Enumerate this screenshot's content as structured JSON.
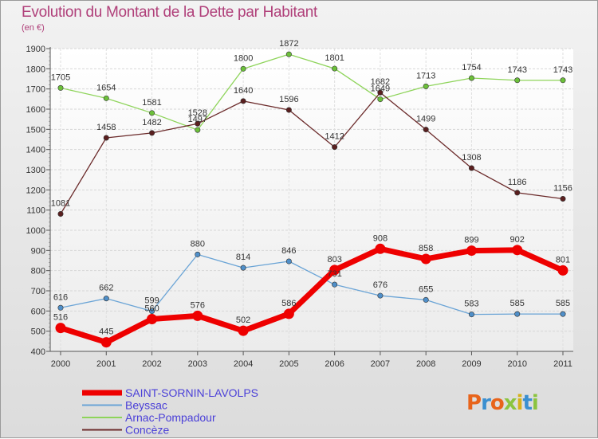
{
  "title": "Evolution du Montant de la Dette par Habitant",
  "unit": "(en €)",
  "logo": {
    "text": "Proxiti",
    "colors": [
      "#e8641b",
      "#3a8fd0",
      "#e8641b",
      "#8bc43f",
      "#d6b11b",
      "#3a8fd0",
      "#8bc43f"
    ]
  },
  "chart_data": {
    "type": "line",
    "x": [
      "2000",
      "2001",
      "2002",
      "2003",
      "2004",
      "2005",
      "2006",
      "2007",
      "2008",
      "2009",
      "2010",
      "2011"
    ],
    "ylim": [
      400,
      1900
    ],
    "yticks": [
      400,
      500,
      600,
      700,
      800,
      900,
      1000,
      1100,
      1200,
      1300,
      1400,
      1500,
      1600,
      1700,
      1800,
      1900
    ],
    "grid": true,
    "legend_position": "bottom-left",
    "series": [
      {
        "name": "Arnac-Pompadour",
        "color": "#8ed45a",
        "marker": "#6cc03a",
        "width": 1.3,
        "values": [
          1705,
          1654,
          1581,
          1497,
          1800,
          1872,
          1801,
          1649,
          1713,
          1754,
          1743,
          1743
        ]
      },
      {
        "name": "Concèze",
        "color": "#6b2a2a",
        "marker": "#5a1f1f",
        "width": 1.3,
        "values": [
          1081,
          1458,
          1482,
          1528,
          1640,
          1596,
          1412,
          1682,
          1499,
          1308,
          1186,
          1156
        ]
      },
      {
        "name": "Beyssac",
        "color": "#6aa4d6",
        "marker": "#4f8fc9",
        "width": 1.3,
        "values": [
          616,
          662,
          599,
          880,
          814,
          846,
          731,
          676,
          655,
          583,
          585,
          585
        ]
      },
      {
        "name": "SAINT-SORNIN-LAVOLPS",
        "color": "#ee0000",
        "marker": "#ee0000",
        "width": 7,
        "values": [
          516,
          445,
          560,
          576,
          502,
          586,
          803,
          908,
          858,
          899,
          902,
          801
        ]
      }
    ],
    "legend": [
      "SAINT-SORNIN-LAVOLPS",
      "Beyssac",
      "Arnac-Pompadour",
      "Concèze"
    ]
  }
}
